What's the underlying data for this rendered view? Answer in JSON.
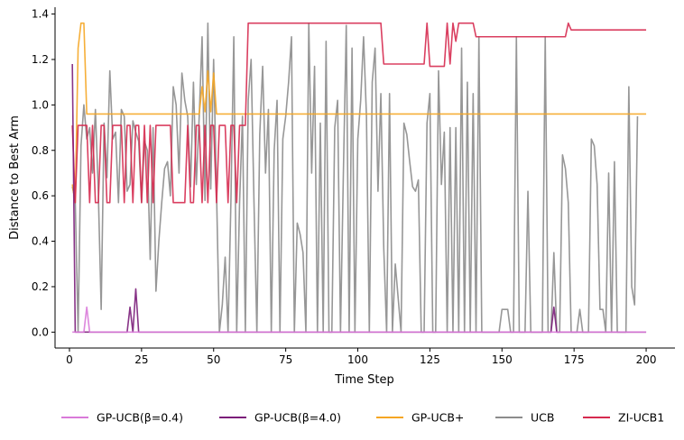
{
  "chart_data": {
    "type": "line",
    "title": "",
    "xlabel": "Time Step",
    "ylabel": "Distance to Best Arm",
    "xlim": [
      -5,
      210
    ],
    "ylim": [
      -0.07,
      1.43
    ],
    "xticks": [
      0,
      25,
      50,
      75,
      100,
      125,
      150,
      175,
      200
    ],
    "yticks": [
      0.0,
      0.2,
      0.4,
      0.6,
      0.8,
      1.0,
      1.2,
      1.4
    ],
    "xtick_labels": [
      "0",
      "25",
      "50",
      "75",
      "100",
      "125",
      "150",
      "175",
      "200"
    ],
    "ytick_labels": [
      "0.0",
      "0.2",
      "0.4",
      "0.6",
      "0.8",
      "1.0",
      "1.2",
      "1.4"
    ],
    "grid": false,
    "legend_position": "bottom-center",
    "series": [
      {
        "name": "UCB",
        "color": "#8c8c8c",
        "points": [
          [
            1,
            0.64
          ],
          [
            2,
            0.58
          ],
          [
            3,
            0.0
          ],
          [
            4,
            0.82
          ],
          [
            5,
            1.0
          ],
          [
            6,
            0.85
          ],
          [
            7,
            0.9
          ],
          [
            8,
            0.7
          ],
          [
            9,
            0.98
          ],
          [
            10,
            0.62
          ],
          [
            11,
            0.1
          ],
          [
            12,
            0.92
          ],
          [
            13,
            0.68
          ],
          [
            14,
            1.15
          ],
          [
            15,
            0.85
          ],
          [
            16,
            0.88
          ],
          [
            17,
            0.57
          ],
          [
            18,
            0.98
          ],
          [
            19,
            0.95
          ],
          [
            20,
            0.62
          ],
          [
            21,
            0.65
          ],
          [
            22,
            0.93
          ],
          [
            23,
            0.88
          ],
          [
            24,
            0.84
          ],
          [
            25,
            0.57
          ],
          [
            26,
            0.84
          ],
          [
            27,
            0.8
          ],
          [
            28,
            0.32
          ],
          [
            29,
            0.9
          ],
          [
            30,
            0.18
          ],
          [
            31,
            0.4
          ],
          [
            32,
            0.57
          ],
          [
            33,
            0.72
          ],
          [
            34,
            0.75
          ],
          [
            35,
            0.6
          ],
          [
            36,
            1.08
          ],
          [
            37,
            1.0
          ],
          [
            38,
            0.7
          ],
          [
            39,
            1.14
          ],
          [
            40,
            1.02
          ],
          [
            41,
            0.95
          ],
          [
            42,
            0.64
          ],
          [
            43,
            1.1
          ],
          [
            44,
            0.65
          ],
          [
            45,
            0.95
          ],
          [
            46,
            1.3
          ],
          [
            47,
            0.58
          ],
          [
            48,
            1.36
          ],
          [
            49,
            0.63
          ],
          [
            50,
            1.2
          ],
          [
            51,
            0.62
          ],
          [
            52,
            0.0
          ],
          [
            53,
            0.12
          ],
          [
            54,
            0.33
          ],
          [
            55,
            0.0
          ],
          [
            56,
            0.58
          ],
          [
            57,
            1.3
          ],
          [
            58,
            0.0
          ],
          [
            59,
            0.57
          ],
          [
            60,
            0.95
          ],
          [
            61,
            0.0
          ],
          [
            62,
            1.02
          ],
          [
            63,
            1.2
          ],
          [
            64,
            0.57
          ],
          [
            65,
            0.0
          ],
          [
            66,
            0.87
          ],
          [
            67,
            1.17
          ],
          [
            68,
            0.7
          ],
          [
            69,
            0.98
          ],
          [
            70,
            0.0
          ],
          [
            71,
            0.8
          ],
          [
            72,
            1.02
          ],
          [
            73,
            0.0
          ],
          [
            74,
            0.85
          ],
          [
            75,
            0.95
          ],
          [
            76,
            1.1
          ],
          [
            77,
            1.3
          ],
          [
            78,
            0.0
          ],
          [
            79,
            0.48
          ],
          [
            80,
            0.43
          ],
          [
            81,
            0.35
          ],
          [
            82,
            0.0
          ],
          [
            83,
            1.36
          ],
          [
            84,
            0.7
          ],
          [
            85,
            1.17
          ],
          [
            86,
            0.0
          ],
          [
            87,
            0.92
          ],
          [
            88,
            0.0
          ],
          [
            89,
            1.28
          ],
          [
            90,
            0.0
          ],
          [
            91,
            0.0
          ],
          [
            92,
            0.9
          ],
          [
            93,
            1.02
          ],
          [
            94,
            0.0
          ],
          [
            95,
            0.7
          ],
          [
            96,
            1.35
          ],
          [
            97,
            0.0
          ],
          [
            98,
            1.25
          ],
          [
            99,
            0.0
          ],
          [
            100,
            0.85
          ],
          [
            101,
            1.02
          ],
          [
            102,
            1.3
          ],
          [
            103,
            0.95
          ],
          [
            104,
            0.0
          ],
          [
            105,
            1.1
          ],
          [
            106,
            1.25
          ],
          [
            107,
            0.62
          ],
          [
            108,
            1.05
          ],
          [
            109,
            0.37
          ],
          [
            110,
            0.0
          ],
          [
            111,
            1.05
          ],
          [
            112,
            0.0
          ],
          [
            113,
            0.3
          ],
          [
            114,
            0.15
          ],
          [
            115,
            0.0
          ],
          [
            116,
            0.92
          ],
          [
            117,
            0.87
          ],
          [
            118,
            0.75
          ],
          [
            119,
            0.64
          ],
          [
            120,
            0.62
          ],
          [
            121,
            0.67
          ],
          [
            122,
            0.0
          ],
          [
            123,
            0.0
          ],
          [
            124,
            0.92
          ],
          [
            125,
            1.05
          ],
          [
            126,
            0.0
          ],
          [
            127,
            0.0
          ],
          [
            128,
            1.15
          ],
          [
            129,
            0.65
          ],
          [
            130,
            0.88
          ],
          [
            131,
            0.0
          ],
          [
            132,
            0.9
          ],
          [
            133,
            0.0
          ],
          [
            134,
            0.9
          ],
          [
            135,
            0.0
          ],
          [
            136,
            1.25
          ],
          [
            137,
            0.0
          ],
          [
            138,
            1.1
          ],
          [
            139,
            0.0
          ],
          [
            140,
            1.05
          ],
          [
            141,
            0.0
          ],
          [
            142,
            1.3
          ],
          [
            143,
            0.0
          ],
          [
            144,
            0.0
          ],
          [
            145,
            0.0
          ],
          [
            146,
            0.0
          ],
          [
            147,
            0.0
          ],
          [
            148,
            0.0
          ],
          [
            149,
            0.0
          ],
          [
            150,
            0.1
          ],
          [
            151,
            0.1
          ],
          [
            152,
            0.1
          ],
          [
            153,
            0.0
          ],
          [
            154,
            0.0
          ],
          [
            155,
            1.3
          ],
          [
            156,
            0.0
          ],
          [
            157,
            0.0
          ],
          [
            158,
            0.0
          ],
          [
            159,
            0.62
          ],
          [
            160,
            0.0
          ],
          [
            161,
            0.0
          ],
          [
            162,
            0.0
          ],
          [
            163,
            0.0
          ],
          [
            164,
            0.0
          ],
          [
            165,
            1.3
          ],
          [
            166,
            0.0
          ],
          [
            167,
            0.0
          ],
          [
            168,
            0.35
          ],
          [
            169,
            0.0
          ],
          [
            170,
            0.0
          ],
          [
            171,
            0.78
          ],
          [
            172,
            0.72
          ],
          [
            173,
            0.57
          ],
          [
            174,
            0.0
          ],
          [
            175,
            0.0
          ],
          [
            176,
            0.0
          ],
          [
            177,
            0.1
          ],
          [
            178,
            0.0
          ],
          [
            179,
            0.0
          ],
          [
            180,
            0.0
          ],
          [
            181,
            0.85
          ],
          [
            182,
            0.82
          ],
          [
            183,
            0.65
          ],
          [
            184,
            0.1
          ],
          [
            185,
            0.1
          ],
          [
            186,
            0.0
          ],
          [
            187,
            0.7
          ],
          [
            188,
            0.0
          ],
          [
            189,
            0.75
          ],
          [
            190,
            0.0
          ],
          [
            191,
            0.0
          ],
          [
            192,
            0.0
          ],
          [
            193,
            0.0
          ],
          [
            194,
            1.08
          ],
          [
            195,
            0.2
          ],
          [
            196,
            0.12
          ],
          [
            197,
            0.95
          ]
        ]
      },
      {
        "name": "GP-UCB+",
        "color": "#f5a623",
        "points": [
          [
            1,
            0.65
          ],
          [
            2,
            0.57
          ],
          [
            3,
            1.25
          ],
          [
            4,
            1.36
          ],
          [
            5,
            1.36
          ],
          [
            6,
            0.96
          ],
          [
            7,
            0.96
          ],
          [
            45,
            0.96
          ],
          [
            46,
            1.08
          ],
          [
            47,
            0.97
          ],
          [
            48,
            1.15
          ],
          [
            49,
            0.97
          ],
          [
            50,
            1.14
          ],
          [
            51,
            0.96
          ],
          [
            200,
            0.96
          ]
        ]
      },
      {
        "name": "ZI-UCB1",
        "color": "#d62a4f",
        "points": [
          [
            1,
            0.91
          ],
          [
            2,
            0.57
          ],
          [
            3,
            0.91
          ],
          [
            4,
            0.91
          ],
          [
            5,
            0.91
          ],
          [
            6,
            0.91
          ],
          [
            7,
            0.57
          ],
          [
            8,
            0.91
          ],
          [
            9,
            0.57
          ],
          [
            10,
            0.57
          ],
          [
            11,
            0.91
          ],
          [
            12,
            0.91
          ],
          [
            13,
            0.57
          ],
          [
            14,
            0.57
          ],
          [
            15,
            0.91
          ],
          [
            16,
            0.91
          ],
          [
            17,
            0.91
          ],
          [
            18,
            0.91
          ],
          [
            19,
            0.57
          ],
          [
            20,
            0.91
          ],
          [
            21,
            0.91
          ],
          [
            22,
            0.57
          ],
          [
            23,
            0.91
          ],
          [
            24,
            0.91
          ],
          [
            25,
            0.57
          ],
          [
            26,
            0.91
          ],
          [
            27,
            0.57
          ],
          [
            28,
            0.91
          ],
          [
            29,
            0.57
          ],
          [
            30,
            0.91
          ],
          [
            31,
            0.91
          ],
          [
            32,
            0.91
          ],
          [
            33,
            0.91
          ],
          [
            34,
            0.91
          ],
          [
            35,
            0.91
          ],
          [
            36,
            0.57
          ],
          [
            37,
            0.57
          ],
          [
            38,
            0.57
          ],
          [
            39,
            0.57
          ],
          [
            40,
            0.57
          ],
          [
            41,
            0.91
          ],
          [
            42,
            0.57
          ],
          [
            43,
            0.57
          ],
          [
            44,
            0.91
          ],
          [
            45,
            0.91
          ],
          [
            46,
            0.57
          ],
          [
            47,
            0.91
          ],
          [
            48,
            0.57
          ],
          [
            49,
            0.91
          ],
          [
            50,
            0.91
          ],
          [
            51,
            0.57
          ],
          [
            52,
            0.91
          ],
          [
            53,
            0.91
          ],
          [
            54,
            0.91
          ],
          [
            55,
            0.57
          ],
          [
            56,
            0.91
          ],
          [
            57,
            0.91
          ],
          [
            58,
            0.57
          ],
          [
            59,
            0.91
          ],
          [
            60,
            0.91
          ],
          [
            61,
            0.91
          ],
          [
            62,
            1.36
          ],
          [
            108,
            1.36
          ],
          [
            109,
            1.18
          ],
          [
            123,
            1.18
          ],
          [
            124,
            1.36
          ],
          [
            125,
            1.17
          ],
          [
            130,
            1.17
          ],
          [
            131,
            1.36
          ],
          [
            132,
            1.18
          ],
          [
            133,
            1.36
          ],
          [
            134,
            1.28
          ],
          [
            135,
            1.36
          ],
          [
            140,
            1.36
          ],
          [
            141,
            1.3
          ],
          [
            172,
            1.3
          ],
          [
            173,
            1.36
          ],
          [
            174,
            1.33
          ],
          [
            200,
            1.33
          ]
        ]
      },
      {
        "name": "GP-UCB(β=4.0)",
        "color": "#7b1e7a",
        "points": [
          [
            1,
            1.18
          ],
          [
            2,
            0.0
          ],
          [
            20,
            0.0
          ],
          [
            21,
            0.11
          ],
          [
            22,
            0.0
          ],
          [
            23,
            0.19
          ],
          [
            24,
            0.0
          ],
          [
            167,
            0.0
          ],
          [
            168,
            0.11
          ],
          [
            169,
            0.0
          ],
          [
            200,
            0.0
          ]
        ]
      },
      {
        "name": "GP-UCB(β=0.4)",
        "color": "#d97ad9",
        "points": [
          [
            1,
            0.0
          ],
          [
            5,
            0.0
          ],
          [
            6,
            0.11
          ],
          [
            7,
            0.0
          ],
          [
            200,
            0.0
          ]
        ]
      }
    ]
  },
  "legend": [
    {
      "label": "GP-UCB(β=0.4)",
      "color": "#d97ad9"
    },
    {
      "label": "GP-UCB(β=4.0)",
      "color": "#7b1e7a"
    },
    {
      "label": "GP-UCB+",
      "color": "#f5a623"
    },
    {
      "label": "UCB",
      "color": "#8c8c8c"
    },
    {
      "label": "ZI-UCB1",
      "color": "#d62a4f"
    }
  ]
}
